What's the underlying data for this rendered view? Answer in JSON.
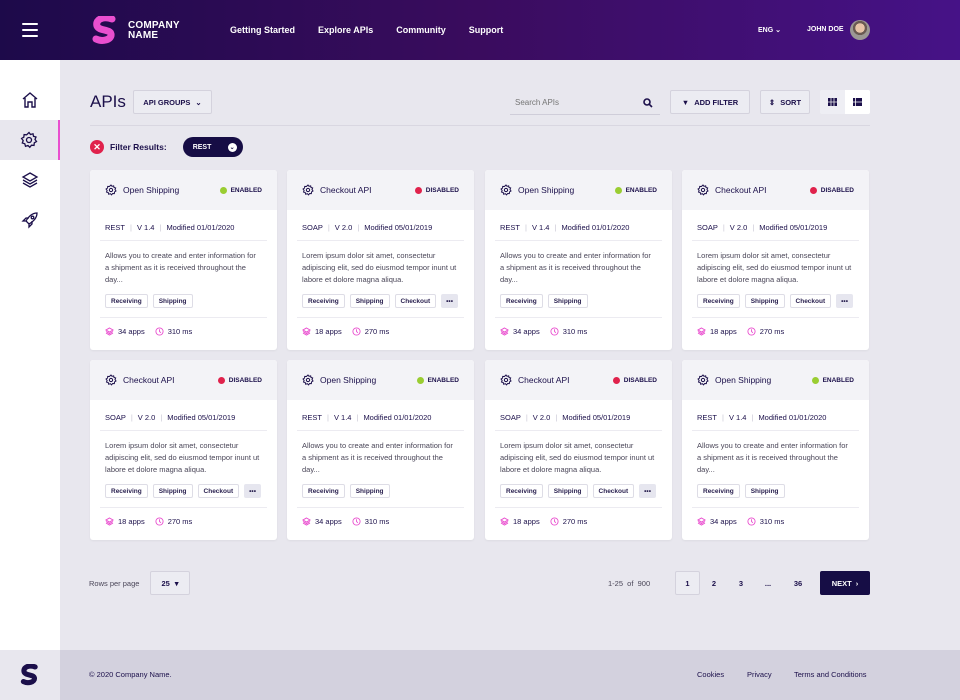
{
  "header": {
    "company": [
      "COMPANY",
      "NAME"
    ],
    "nav": [
      "Getting Started",
      "Explore APIs",
      "Community",
      "Support"
    ],
    "language": "ENG",
    "user": "JOHN DOE",
    "brand_color": "#e94fcf"
  },
  "sidebar": {
    "items": [
      {
        "icon": "home-icon"
      },
      {
        "icon": "gear-icon",
        "active": true
      },
      {
        "icon": "layers-icon"
      },
      {
        "icon": "rocket-icon"
      }
    ]
  },
  "toolbar": {
    "title": "APIs",
    "groups_label": "API GROUPS",
    "search_placeholder": "Search APIs",
    "add_filter": "ADD FILTER",
    "sort": "SORT"
  },
  "filter": {
    "label": "Filter Results:",
    "chip": "REST"
  },
  "cards": [
    {
      "name": "Open Shipping",
      "status": "ENABLED",
      "type": "REST",
      "version": "V 1.4",
      "modified": "Modified 01/01/2020",
      "desc": "Allows you to create and enter information for a shipment as it is received throughout the day...",
      "tags": [
        "Receiving",
        "Shipping"
      ],
      "more": false,
      "apps": "34 apps",
      "latency": "310 ms"
    },
    {
      "name": "Checkout API",
      "status": "DISABLED",
      "type": "SOAP",
      "version": "V 2.0",
      "modified": "Modified 05/01/2019",
      "desc": "Lorem ipsum dolor sit amet, consectetur adipiscing elit, sed do eiusmod tempor inunt ut labore et dolore magna aliqua.",
      "tags": [
        "Receiving",
        "Shipping",
        "Checkout"
      ],
      "more": true,
      "apps": "18 apps",
      "latency": "270 ms"
    },
    {
      "name": "Open Shipping",
      "status": "ENABLED",
      "type": "REST",
      "version": "V 1.4",
      "modified": "Modified 01/01/2020",
      "desc": "Allows you to create and enter information for a shipment as it is received throughout the day...",
      "tags": [
        "Receiving",
        "Shipping"
      ],
      "more": false,
      "apps": "34 apps",
      "latency": "310 ms"
    },
    {
      "name": "Checkout API",
      "status": "DISABLED",
      "type": "SOAP",
      "version": "V 2.0",
      "modified": "Modified 05/01/2019",
      "desc": "Lorem ipsum dolor sit amet, consectetur adipiscing elit, sed do eiusmod tempor inunt ut labore et dolore magna aliqua.",
      "tags": [
        "Receiving",
        "Shipping",
        "Checkout"
      ],
      "more": true,
      "apps": "18 apps",
      "latency": "270 ms"
    },
    {
      "name": "Checkout API",
      "status": "DISABLED",
      "type": "SOAP",
      "version": "V 2.0",
      "modified": "Modified 05/01/2019",
      "desc": "Lorem ipsum dolor sit amet, consectetur adipiscing elit, sed do eiusmod tempor inunt ut labore et dolore magna aliqua.",
      "tags": [
        "Receiving",
        "Shipping",
        "Checkout"
      ],
      "more": true,
      "apps": "18 apps",
      "latency": "270 ms"
    },
    {
      "name": "Open Shipping",
      "status": "ENABLED",
      "type": "REST",
      "version": "V 1.4",
      "modified": "Modified 01/01/2020",
      "desc": "Allows you to create and enter information for a shipment as it is received throughout the day...",
      "tags": [
        "Receiving",
        "Shipping"
      ],
      "more": false,
      "apps": "34 apps",
      "latency": "310 ms"
    },
    {
      "name": "Checkout API",
      "status": "DISABLED",
      "type": "SOAP",
      "version": "V 2.0",
      "modified": "Modified 05/01/2019",
      "desc": "Lorem ipsum dolor sit amet, consectetur adipiscing elit, sed do eiusmod tempor inunt ut labore et dolore magna aliqua.",
      "tags": [
        "Receiving",
        "Shipping",
        "Checkout"
      ],
      "more": true,
      "apps": "18 apps",
      "latency": "270 ms"
    },
    {
      "name": "Open Shipping",
      "status": "ENABLED",
      "type": "REST",
      "version": "V 1.4",
      "modified": "Modified 01/01/2020",
      "desc": "Allows you to create and enter information for a shipment as it is received throughout the day...",
      "tags": [
        "Receiving",
        "Shipping"
      ],
      "more": false,
      "apps": "34 apps",
      "latency": "310 ms"
    }
  ],
  "status_colors": {
    "ENABLED": "#9acd32",
    "DISABLED": "#e0224c"
  },
  "pagination": {
    "rows_label": "Rows per page",
    "rows_value": "25",
    "range": "1-25  of  900",
    "pages": [
      "1",
      "2",
      "3",
      "...",
      "36"
    ],
    "current": "1",
    "next": "NEXT"
  },
  "footer": {
    "copyright": "© 2020 Company Name.",
    "links": [
      "Cookies",
      "Privacy",
      "Terms and Conditions"
    ]
  }
}
